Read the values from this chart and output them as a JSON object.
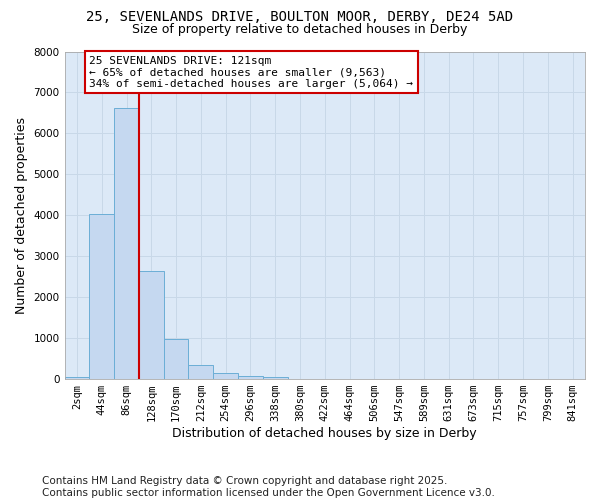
{
  "title_line1": "25, SEVENLANDS DRIVE, BOULTON MOOR, DERBY, DE24 5AD",
  "title_line2": "Size of property relative to detached houses in Derby",
  "xlabel": "Distribution of detached houses by size in Derby",
  "ylabel": "Number of detached properties",
  "categories": [
    "2sqm",
    "44sqm",
    "86sqm",
    "128sqm",
    "170sqm",
    "212sqm",
    "254sqm",
    "296sqm",
    "338sqm",
    "380sqm",
    "422sqm",
    "464sqm",
    "506sqm",
    "547sqm",
    "589sqm",
    "631sqm",
    "673sqm",
    "715sqm",
    "757sqm",
    "799sqm",
    "841sqm"
  ],
  "values": [
    60,
    4020,
    6620,
    2640,
    970,
    350,
    140,
    70,
    50,
    0,
    0,
    0,
    0,
    0,
    0,
    0,
    0,
    0,
    0,
    0,
    0
  ],
  "bar_color": "#c5d8f0",
  "bar_edge_color": "#6baed6",
  "vline_color": "#cc0000",
  "annotation_text": "25 SEVENLANDS DRIVE: 121sqm\n← 65% of detached houses are smaller (9,563)\n34% of semi-detached houses are larger (5,064) →",
  "annotation_box_color": "#ffffff",
  "annotation_box_edge": "#cc0000",
  "ylim": [
    0,
    8000
  ],
  "yticks": [
    0,
    1000,
    2000,
    3000,
    4000,
    5000,
    6000,
    7000,
    8000
  ],
  "grid_color": "#c8d8e8",
  "background_color": "#dce9f7",
  "footnote": "Contains HM Land Registry data © Crown copyright and database right 2025.\nContains public sector information licensed under the Open Government Licence v3.0.",
  "footnote_fontsize": 7.5,
  "title_fontsize1": 10,
  "title_fontsize2": 9,
  "tick_fontsize": 7.5,
  "axis_label_fontsize": 9
}
